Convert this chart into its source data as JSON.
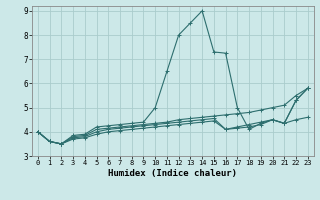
{
  "xlabel": "Humidex (Indice chaleur)",
  "xlim": [
    -0.5,
    23.5
  ],
  "ylim": [
    3,
    9.2
  ],
  "yticks": [
    3,
    4,
    5,
    6,
    7,
    8,
    9
  ],
  "xticks": [
    0,
    1,
    2,
    3,
    4,
    5,
    6,
    7,
    8,
    9,
    10,
    11,
    12,
    13,
    14,
    15,
    16,
    17,
    18,
    19,
    20,
    21,
    22,
    23
  ],
  "bg_color": "#cce8e8",
  "grid_color": "#aacccc",
  "line_color": "#2d6e6e",
  "lines": [
    {
      "x": [
        0,
        1,
        2,
        3,
        4,
        5,
        6,
        7,
        8,
        9,
        10,
        11,
        12,
        13,
        14,
        15,
        16,
        17,
        18,
        19,
        20,
        21,
        22,
        23
      ],
      "y": [
        4.0,
        3.6,
        3.5,
        3.85,
        3.9,
        4.2,
        4.25,
        4.3,
        4.35,
        4.4,
        5.0,
        6.5,
        8.0,
        8.5,
        9.0,
        7.3,
        7.25,
        5.0,
        4.1,
        4.35,
        4.5,
        4.35,
        5.3,
        5.8
      ]
    },
    {
      "x": [
        0,
        1,
        2,
        3,
        4,
        5,
        6,
        7,
        8,
        9,
        10,
        11,
        12,
        13,
        14,
        15,
        16,
        17,
        18,
        19,
        20,
        21,
        22,
        23
      ],
      "y": [
        4.0,
        3.6,
        3.5,
        3.8,
        3.85,
        4.1,
        4.15,
        4.2,
        4.25,
        4.3,
        4.35,
        4.4,
        4.5,
        4.55,
        4.6,
        4.65,
        4.7,
        4.75,
        4.8,
        4.9,
        5.0,
        5.1,
        5.5,
        5.8
      ]
    },
    {
      "x": [
        0,
        1,
        2,
        3,
        4,
        5,
        6,
        7,
        8,
        9,
        10,
        11,
        12,
        13,
        14,
        15,
        16,
        17,
        18,
        19,
        20,
        21,
        22,
        23
      ],
      "y": [
        4.0,
        3.6,
        3.5,
        3.75,
        3.8,
        4.0,
        4.1,
        4.15,
        4.2,
        4.25,
        4.3,
        4.35,
        4.4,
        4.45,
        4.5,
        4.55,
        4.1,
        4.15,
        4.2,
        4.3,
        4.5,
        4.35,
        5.3,
        5.8
      ]
    },
    {
      "x": [
        0,
        1,
        2,
        3,
        4,
        5,
        6,
        7,
        8,
        9,
        10,
        11,
        12,
        13,
        14,
        15,
        16,
        17,
        18,
        19,
        20,
        21,
        22,
        23
      ],
      "y": [
        4.0,
        3.6,
        3.5,
        3.7,
        3.75,
        3.9,
        4.0,
        4.05,
        4.1,
        4.15,
        4.2,
        4.25,
        4.3,
        4.35,
        4.4,
        4.45,
        4.1,
        4.2,
        4.3,
        4.4,
        4.5,
        4.35,
        4.5,
        4.6
      ]
    }
  ]
}
